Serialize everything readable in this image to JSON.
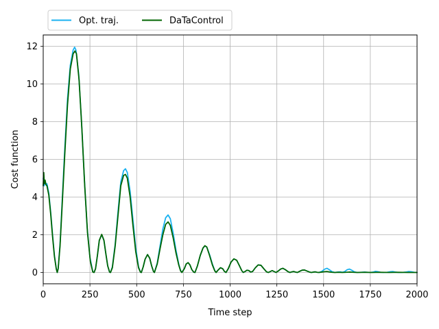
{
  "chart_data": {
    "type": "line",
    "title": "",
    "xlabel": "Time step",
    "ylabel": "Cost function",
    "xlim": [
      0,
      2000
    ],
    "ylim": [
      -0.6,
      12.6
    ],
    "xticks": [
      0,
      250,
      500,
      750,
      1000,
      1250,
      1500,
      1750,
      2000
    ],
    "yticks": [
      0,
      2,
      4,
      6,
      8,
      10,
      12
    ],
    "grid": true,
    "legend_position": "top-left, above plot",
    "series": [
      {
        "name": "Opt. traj.",
        "color": "#1ab2f0",
        "points": [
          [
            0,
            5.0
          ],
          [
            5,
            4.6
          ],
          [
            10,
            4.75
          ],
          [
            20,
            4.7
          ],
          [
            30,
            4.2
          ],
          [
            40,
            3.2
          ],
          [
            50,
            2.0
          ],
          [
            60,
            0.9
          ],
          [
            70,
            0.2
          ],
          [
            75,
            0.0
          ],
          [
            80,
            0.2
          ],
          [
            90,
            1.5
          ],
          [
            100,
            3.5
          ],
          [
            115,
            6.5
          ],
          [
            130,
            9.2
          ],
          [
            145,
            11.0
          ],
          [
            160,
            11.8
          ],
          [
            168,
            11.95
          ],
          [
            175,
            11.8
          ],
          [
            190,
            10.5
          ],
          [
            205,
            8.0
          ],
          [
            220,
            5.0
          ],
          [
            235,
            2.4
          ],
          [
            250,
            0.8
          ],
          [
            265,
            0.05
          ],
          [
            272,
            0.0
          ],
          [
            280,
            0.2
          ],
          [
            290,
            0.9
          ],
          [
            300,
            1.7
          ],
          [
            313,
            2.0
          ],
          [
            325,
            1.7
          ],
          [
            335,
            1.0
          ],
          [
            345,
            0.35
          ],
          [
            355,
            0.02
          ],
          [
            360,
            0.0
          ],
          [
            370,
            0.3
          ],
          [
            385,
            1.5
          ],
          [
            400,
            3.2
          ],
          [
            415,
            4.8
          ],
          [
            430,
            5.4
          ],
          [
            440,
            5.5
          ],
          [
            450,
            5.3
          ],
          [
            465,
            4.3
          ],
          [
            480,
            2.8
          ],
          [
            495,
            1.3
          ],
          [
            510,
            0.3
          ],
          [
            520,
            0.02
          ],
          [
            525,
            0.0
          ],
          [
            535,
            0.3
          ],
          [
            545,
            0.7
          ],
          [
            558,
            0.95
          ],
          [
            570,
            0.75
          ],
          [
            580,
            0.35
          ],
          [
            590,
            0.05
          ],
          [
            595,
            0.0
          ],
          [
            610,
            0.5
          ],
          [
            625,
            1.4
          ],
          [
            640,
            2.3
          ],
          [
            655,
            2.9
          ],
          [
            668,
            3.05
          ],
          [
            680,
            2.85
          ],
          [
            695,
            2.1
          ],
          [
            710,
            1.2
          ],
          [
            725,
            0.45
          ],
          [
            735,
            0.1
          ],
          [
            742,
            0.0
          ],
          [
            755,
            0.2
          ],
          [
            765,
            0.45
          ],
          [
            775,
            0.52
          ],
          [
            785,
            0.4
          ],
          [
            795,
            0.15
          ],
          [
            805,
            0.02
          ],
          [
            812,
            0.0
          ],
          [
            825,
            0.35
          ],
          [
            840,
            0.9
          ],
          [
            855,
            1.3
          ],
          [
            865,
            1.4
          ],
          [
            875,
            1.35
          ],
          [
            890,
            0.95
          ],
          [
            905,
            0.45
          ],
          [
            918,
            0.1
          ],
          [
            925,
            0.0
          ],
          [
            935,
            0.12
          ],
          [
            948,
            0.25
          ],
          [
            960,
            0.2
          ],
          [
            970,
            0.05
          ],
          [
            978,
            0.0
          ],
          [
            990,
            0.2
          ],
          [
            1005,
            0.55
          ],
          [
            1020,
            0.72
          ],
          [
            1035,
            0.65
          ],
          [
            1050,
            0.35
          ],
          [
            1062,
            0.1
          ],
          [
            1070,
            0.0
          ],
          [
            1080,
            0.05
          ],
          [
            1090,
            0.12
          ],
          [
            1100,
            0.1
          ],
          [
            1110,
            0.02
          ],
          [
            1120,
            0.05
          ],
          [
            1135,
            0.25
          ],
          [
            1150,
            0.4
          ],
          [
            1165,
            0.38
          ],
          [
            1180,
            0.2
          ],
          [
            1195,
            0.03
          ],
          [
            1205,
            0.0
          ],
          [
            1215,
            0.05
          ],
          [
            1225,
            0.1
          ],
          [
            1235,
            0.05
          ],
          [
            1245,
            0.0
          ],
          [
            1258,
            0.08
          ],
          [
            1270,
            0.18
          ],
          [
            1282,
            0.22
          ],
          [
            1295,
            0.15
          ],
          [
            1310,
            0.04
          ],
          [
            1320,
            0.0
          ],
          [
            1330,
            0.03
          ],
          [
            1340,
            0.05
          ],
          [
            1350,
            0.02
          ],
          [
            1360,
            0.0
          ],
          [
            1372,
            0.06
          ],
          [
            1385,
            0.12
          ],
          [
            1398,
            0.13
          ],
          [
            1410,
            0.08
          ],
          [
            1425,
            0.02
          ],
          [
            1435,
            0.0
          ],
          [
            1445,
            0.02
          ],
          [
            1455,
            0.03
          ],
          [
            1465,
            0.01
          ],
          [
            1475,
            0.0
          ],
          [
            1490,
            0.05
          ],
          [
            1505,
            0.17
          ],
          [
            1518,
            0.22
          ],
          [
            1530,
            0.15
          ],
          [
            1545,
            0.04
          ],
          [
            1560,
            0.0
          ],
          [
            1575,
            0.02
          ],
          [
            1590,
            0.03
          ],
          [
            1600,
            0.01
          ],
          [
            1612,
            0.04
          ],
          [
            1625,
            0.14
          ],
          [
            1638,
            0.18
          ],
          [
            1650,
            0.12
          ],
          [
            1665,
            0.03
          ],
          [
            1680,
            0.0
          ],
          [
            1700,
            0.01
          ],
          [
            1720,
            0.02
          ],
          [
            1735,
            0.01
          ],
          [
            1750,
            0.0
          ],
          [
            1765,
            0.02
          ],
          [
            1778,
            0.06
          ],
          [
            1790,
            0.04
          ],
          [
            1805,
            0.01
          ],
          [
            1820,
            0.0
          ],
          [
            1840,
            0.01
          ],
          [
            1858,
            0.04
          ],
          [
            1870,
            0.05
          ],
          [
            1885,
            0.02
          ],
          [
            1900,
            0.0
          ],
          [
            1920,
            0.0
          ],
          [
            1940,
            0.02
          ],
          [
            1955,
            0.05
          ],
          [
            1968,
            0.04
          ],
          [
            1985,
            0.01
          ],
          [
            2000,
            0.0
          ]
        ]
      },
      {
        "name": "DaTaControl",
        "color": "#006400",
        "points": [
          [
            0,
            4.6
          ],
          [
            3,
            5.3
          ],
          [
            6,
            4.7
          ],
          [
            10,
            4.9
          ],
          [
            15,
            4.65
          ],
          [
            20,
            4.6
          ],
          [
            30,
            4.1
          ],
          [
            40,
            3.1
          ],
          [
            50,
            1.9
          ],
          [
            60,
            0.85
          ],
          [
            70,
            0.18
          ],
          [
            75,
            0.0
          ],
          [
            80,
            0.2
          ],
          [
            90,
            1.4
          ],
          [
            100,
            3.3
          ],
          [
            115,
            6.2
          ],
          [
            130,
            8.9
          ],
          [
            145,
            10.8
          ],
          [
            160,
            11.6
          ],
          [
            170,
            11.75
          ],
          [
            178,
            11.6
          ],
          [
            192,
            10.2
          ],
          [
            207,
            7.6
          ],
          [
            222,
            4.6
          ],
          [
            237,
            2.1
          ],
          [
            252,
            0.6
          ],
          [
            265,
            0.03
          ],
          [
            272,
            0.0
          ],
          [
            280,
            0.2
          ],
          [
            290,
            0.9
          ],
          [
            300,
            1.7
          ],
          [
            313,
            2.02
          ],
          [
            325,
            1.7
          ],
          [
            335,
            1.0
          ],
          [
            345,
            0.35
          ],
          [
            355,
            0.02
          ],
          [
            360,
            0.0
          ],
          [
            370,
            0.25
          ],
          [
            385,
            1.4
          ],
          [
            400,
            3.0
          ],
          [
            415,
            4.6
          ],
          [
            430,
            5.15
          ],
          [
            440,
            5.2
          ],
          [
            450,
            5.0
          ],
          [
            465,
            4.0
          ],
          [
            480,
            2.5
          ],
          [
            495,
            1.1
          ],
          [
            510,
            0.25
          ],
          [
            520,
            0.02
          ],
          [
            525,
            0.0
          ],
          [
            535,
            0.3
          ],
          [
            545,
            0.7
          ],
          [
            558,
            0.95
          ],
          [
            570,
            0.75
          ],
          [
            580,
            0.35
          ],
          [
            590,
            0.05
          ],
          [
            595,
            0.0
          ],
          [
            610,
            0.45
          ],
          [
            625,
            1.25
          ],
          [
            640,
            2.0
          ],
          [
            655,
            2.55
          ],
          [
            668,
            2.68
          ],
          [
            680,
            2.5
          ],
          [
            695,
            1.85
          ],
          [
            710,
            1.05
          ],
          [
            725,
            0.4
          ],
          [
            735,
            0.08
          ],
          [
            742,
            0.0
          ],
          [
            755,
            0.2
          ],
          [
            765,
            0.45
          ],
          [
            775,
            0.52
          ],
          [
            785,
            0.4
          ],
          [
            795,
            0.15
          ],
          [
            805,
            0.02
          ],
          [
            812,
            0.0
          ],
          [
            825,
            0.35
          ],
          [
            840,
            0.9
          ],
          [
            855,
            1.3
          ],
          [
            865,
            1.42
          ],
          [
            875,
            1.35
          ],
          [
            890,
            0.9
          ],
          [
            905,
            0.4
          ],
          [
            918,
            0.08
          ],
          [
            925,
            0.0
          ],
          [
            935,
            0.12
          ],
          [
            948,
            0.25
          ],
          [
            960,
            0.2
          ],
          [
            970,
            0.05
          ],
          [
            978,
            0.0
          ],
          [
            990,
            0.2
          ],
          [
            1005,
            0.55
          ],
          [
            1020,
            0.72
          ],
          [
            1035,
            0.65
          ],
          [
            1050,
            0.35
          ],
          [
            1062,
            0.1
          ],
          [
            1070,
            0.0
          ],
          [
            1080,
            0.05
          ],
          [
            1090,
            0.12
          ],
          [
            1100,
            0.1
          ],
          [
            1110,
            0.02
          ],
          [
            1120,
            0.05
          ],
          [
            1135,
            0.25
          ],
          [
            1150,
            0.4
          ],
          [
            1165,
            0.38
          ],
          [
            1180,
            0.2
          ],
          [
            1195,
            0.03
          ],
          [
            1205,
            0.0
          ],
          [
            1215,
            0.05
          ],
          [
            1225,
            0.1
          ],
          [
            1235,
            0.05
          ],
          [
            1245,
            0.0
          ],
          [
            1258,
            0.08
          ],
          [
            1270,
            0.18
          ],
          [
            1282,
            0.22
          ],
          [
            1295,
            0.15
          ],
          [
            1310,
            0.04
          ],
          [
            1320,
            0.0
          ],
          [
            1330,
            0.03
          ],
          [
            1340,
            0.05
          ],
          [
            1350,
            0.02
          ],
          [
            1360,
            0.0
          ],
          [
            1372,
            0.06
          ],
          [
            1385,
            0.12
          ],
          [
            1398,
            0.13
          ],
          [
            1410,
            0.08
          ],
          [
            1425,
            0.02
          ],
          [
            1435,
            0.0
          ],
          [
            1445,
            0.02
          ],
          [
            1455,
            0.03
          ],
          [
            1465,
            0.01
          ],
          [
            1475,
            0.0
          ],
          [
            1490,
            0.02
          ],
          [
            1505,
            0.04
          ],
          [
            1518,
            0.05
          ],
          [
            1530,
            0.03
          ],
          [
            1545,
            0.01
          ],
          [
            1560,
            0.0
          ],
          [
            1580,
            0.01
          ],
          [
            1600,
            0.0
          ],
          [
            1620,
            0.01
          ],
          [
            1640,
            0.02
          ],
          [
            1660,
            0.01
          ],
          [
            1680,
            0.0
          ],
          [
            1720,
            0.01
          ],
          [
            1760,
            0.0
          ],
          [
            1800,
            0.01
          ],
          [
            1850,
            0.0
          ],
          [
            1900,
            0.01
          ],
          [
            1950,
            0.0
          ],
          [
            2000,
            0.0
          ]
        ]
      }
    ]
  }
}
